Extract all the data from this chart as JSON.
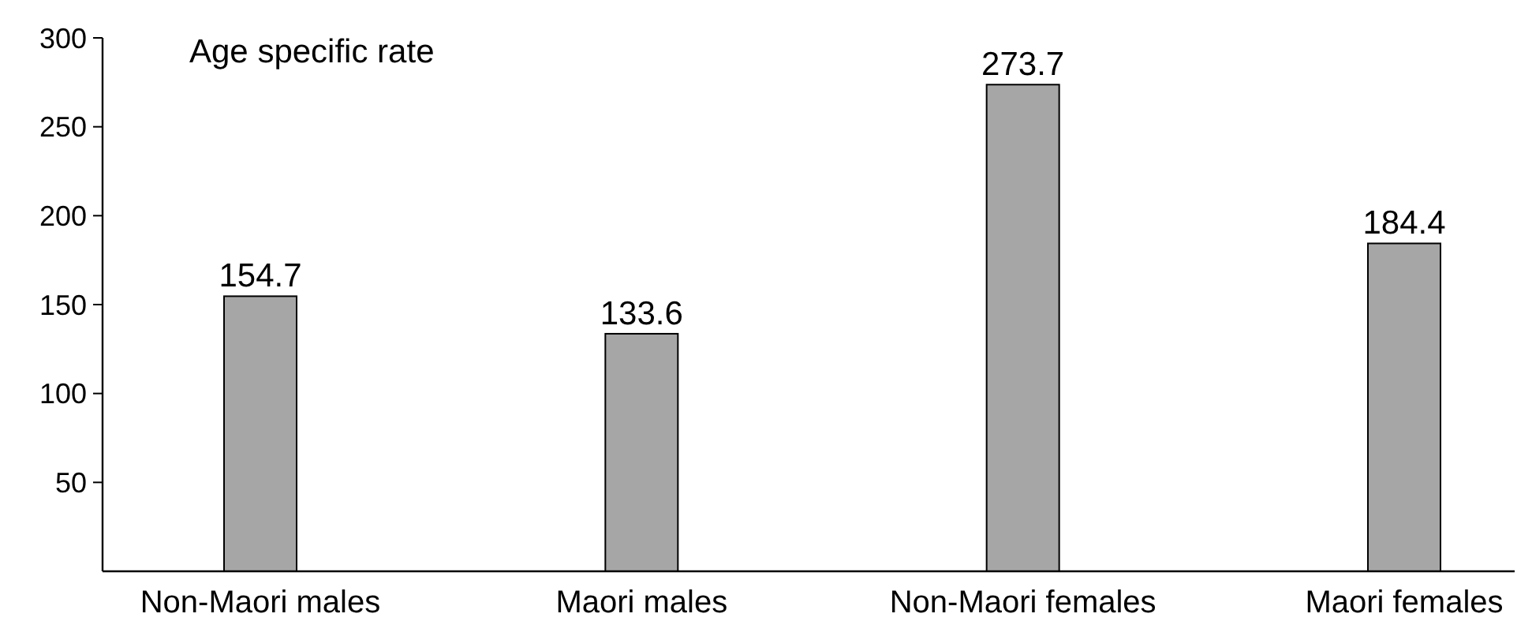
{
  "chart_data": {
    "type": "bar",
    "ylabel": "Age specific rate",
    "categories": [
      "Non-Maori males",
      "Maori males",
      "Non-Maori females",
      "Maori females"
    ],
    "values": [
      154.7,
      133.6,
      273.7,
      184.4
    ],
    "color": "#a6a6a6",
    "ylim": [
      0,
      300
    ],
    "yticks": [
      50,
      100,
      150,
      200,
      250,
      300
    ],
    "data_labels": true,
    "grid": false
  }
}
